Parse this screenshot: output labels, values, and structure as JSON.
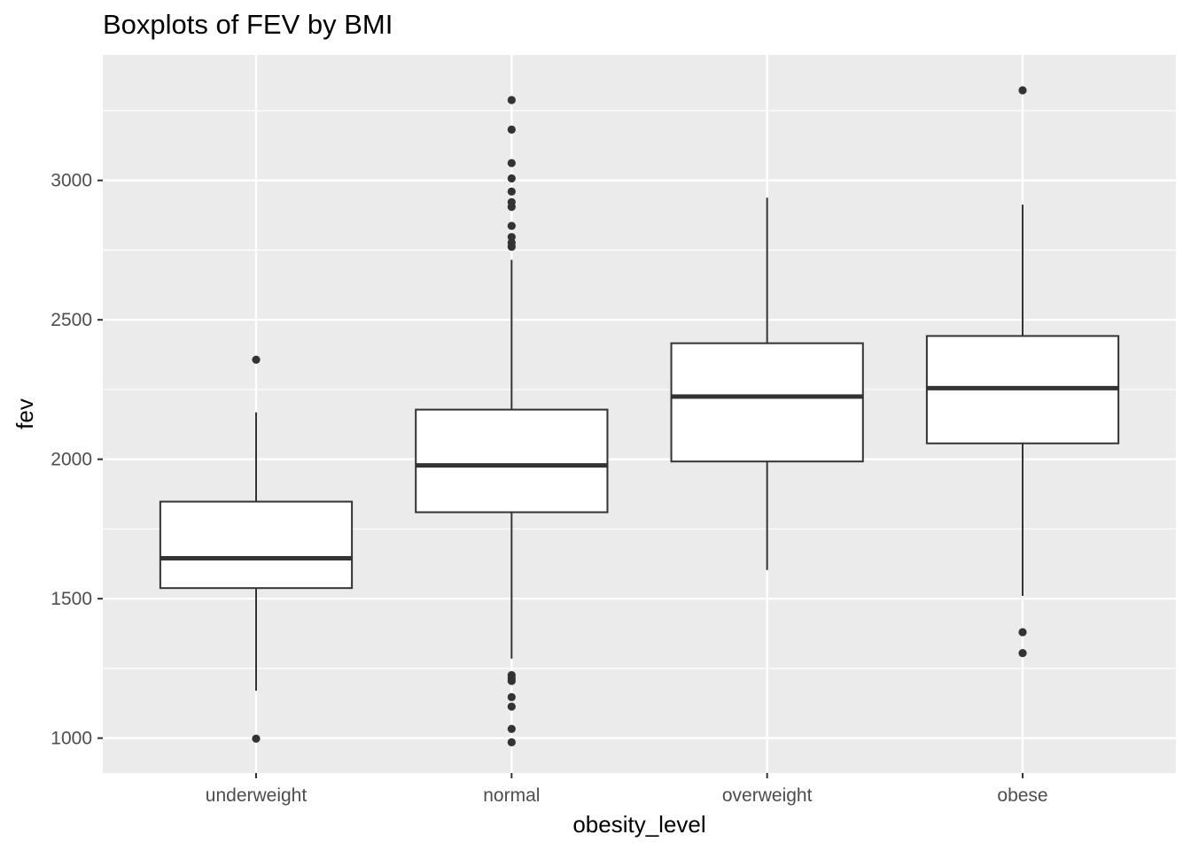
{
  "chart_data": {
    "type": "boxplot",
    "title": "Boxplots of FEV by BMI",
    "xlabel": "obesity_level",
    "ylabel": "fev",
    "categories": [
      "underweight",
      "normal",
      "overweight",
      "obese"
    ],
    "y_ticks": [
      1000,
      1500,
      2000,
      2500,
      3000
    ],
    "ylim": [
      875,
      3450
    ],
    "grid": true,
    "legend": "none",
    "colors": {
      "panel_background": "#ebebeb",
      "grid_major": "#ffffff",
      "box_fill": "#ffffff",
      "box_stroke": "#333333",
      "outlier": "#333333",
      "tick_text": "#4d4d4d"
    },
    "boxes": [
      {
        "category": "underweight",
        "whisker_low": 1170,
        "q1": 1538,
        "median": 1645,
        "q3": 1848,
        "whisker_high": 2168,
        "outliers": [
          2357,
          998
        ]
      },
      {
        "category": "normal",
        "whisker_low": 1285,
        "q1": 1810,
        "median": 1978,
        "q3": 2178,
        "whisker_high": 2715,
        "outliers": [
          3288,
          3182,
          3062,
          3007,
          2960,
          2922,
          2905,
          2837,
          2797,
          2777,
          2762,
          1226,
          1215,
          1205,
          1147,
          1113,
          1033,
          985
        ]
      },
      {
        "category": "overweight",
        "whisker_low": 1603,
        "q1": 1992,
        "median": 2225,
        "q3": 2416,
        "whisker_high": 2938,
        "outliers": []
      },
      {
        "category": "obese",
        "whisker_low": 1510,
        "q1": 2057,
        "median": 2255,
        "q3": 2442,
        "whisker_high": 2913,
        "outliers": [
          3323,
          1380,
          1305
        ]
      }
    ]
  }
}
